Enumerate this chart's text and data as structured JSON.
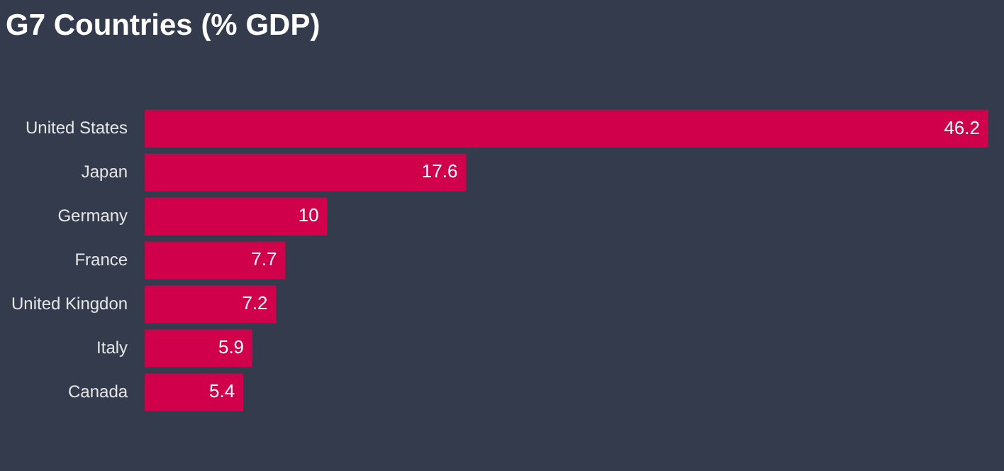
{
  "chart_data": {
    "type": "bar",
    "orientation": "horizontal",
    "title": "G7 Countries (% GDP)",
    "categories": [
      "United States",
      "Japan",
      "Germany",
      "France",
      "United Kingdon",
      "Italy",
      "Canada"
    ],
    "values": [
      46.2,
      17.6,
      10,
      7.7,
      7.2,
      5.9,
      5.4
    ],
    "color": "#d1004b",
    "data_labels": true,
    "legend": false
  }
}
